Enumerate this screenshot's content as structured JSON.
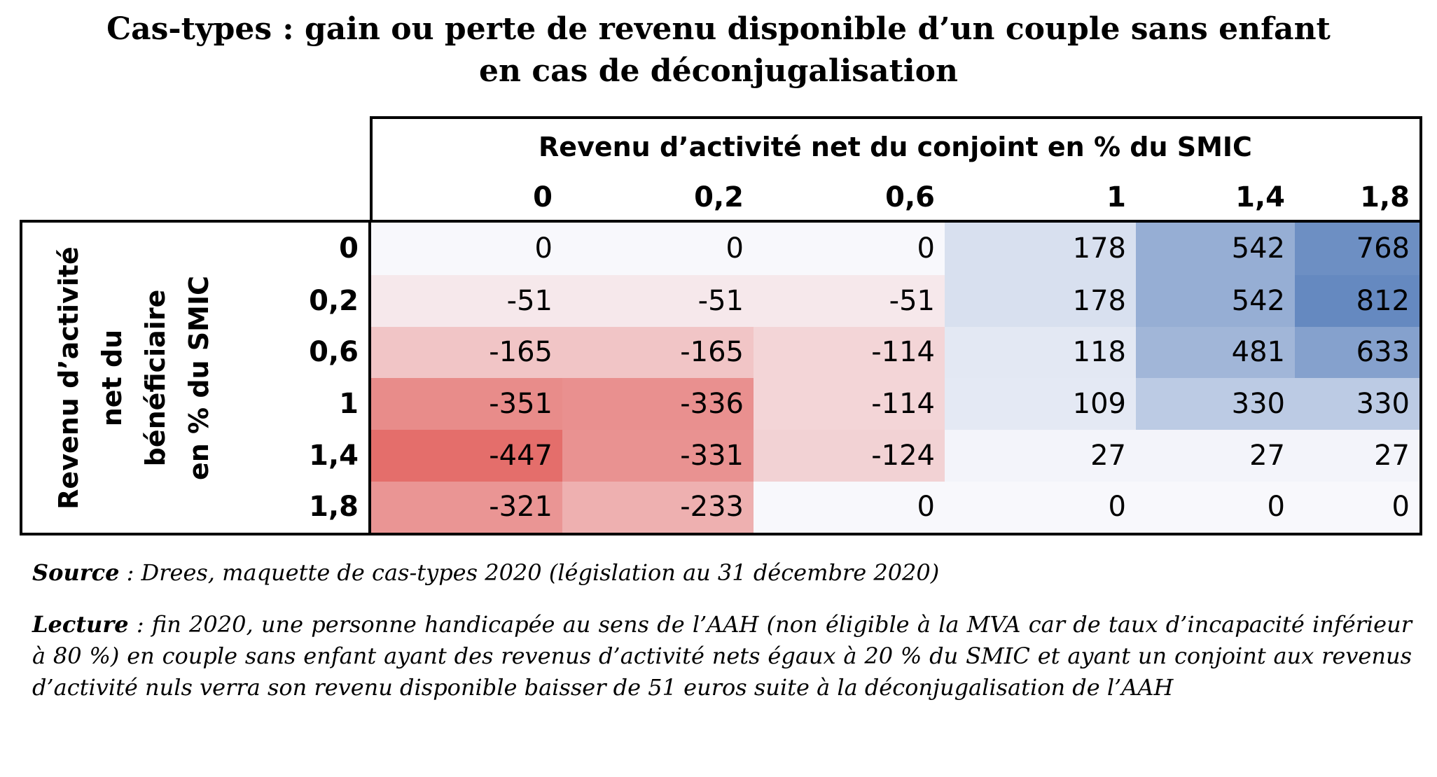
{
  "title_line1": "Cas-types : gain ou perte de revenu disponible d’un couple sans enfant",
  "title_line2": "en cas de déconjugalisation",
  "chart_data": {
    "type": "table",
    "column_title": "Revenu d’activité net du conjoint en % du SMIC",
    "row_title_lines": [
      "Revenu d’activité",
      "net du bénéficiaire",
      "en % du SMIC"
    ],
    "columns": [
      "0",
      "0,2",
      "0,6",
      "1",
      "1,4",
      "1,8"
    ],
    "rows": [
      "0",
      "0,2",
      "0,6",
      "1",
      "1,4",
      "1,8"
    ],
    "values": [
      [
        0,
        0,
        0,
        178,
        542,
        768
      ],
      [
        -51,
        -51,
        -51,
        178,
        542,
        812
      ],
      [
        -165,
        -165,
        -114,
        118,
        481,
        633
      ],
      [
        -351,
        -336,
        -114,
        109,
        330,
        330
      ],
      [
        -447,
        -331,
        -124,
        27,
        27,
        27
      ],
      [
        -321,
        -233,
        0,
        0,
        0,
        0
      ]
    ],
    "colors": {
      "negative": "#e46e6b",
      "positive": "#6589c0",
      "neutral": "#f8f8fc"
    }
  },
  "source": {
    "label": "Source",
    "text": " : Drees, maquette de cas-types 2020 (législation au 31 décembre 2020)"
  },
  "lecture": {
    "label": "Lecture",
    "text": " : fin 2020, une personne handicapée au sens de l’AAH (non éligible à la MVA car de taux d’incapacité inférieur à 80 %) en couple sans enfant ayant des revenus d’activité nets égaux à 20 % du SMIC et ayant un conjoint aux revenus d’activité nuls verra son revenu disponible baisser de 51 euros suite à la déconjugalisation de l’AAH"
  }
}
